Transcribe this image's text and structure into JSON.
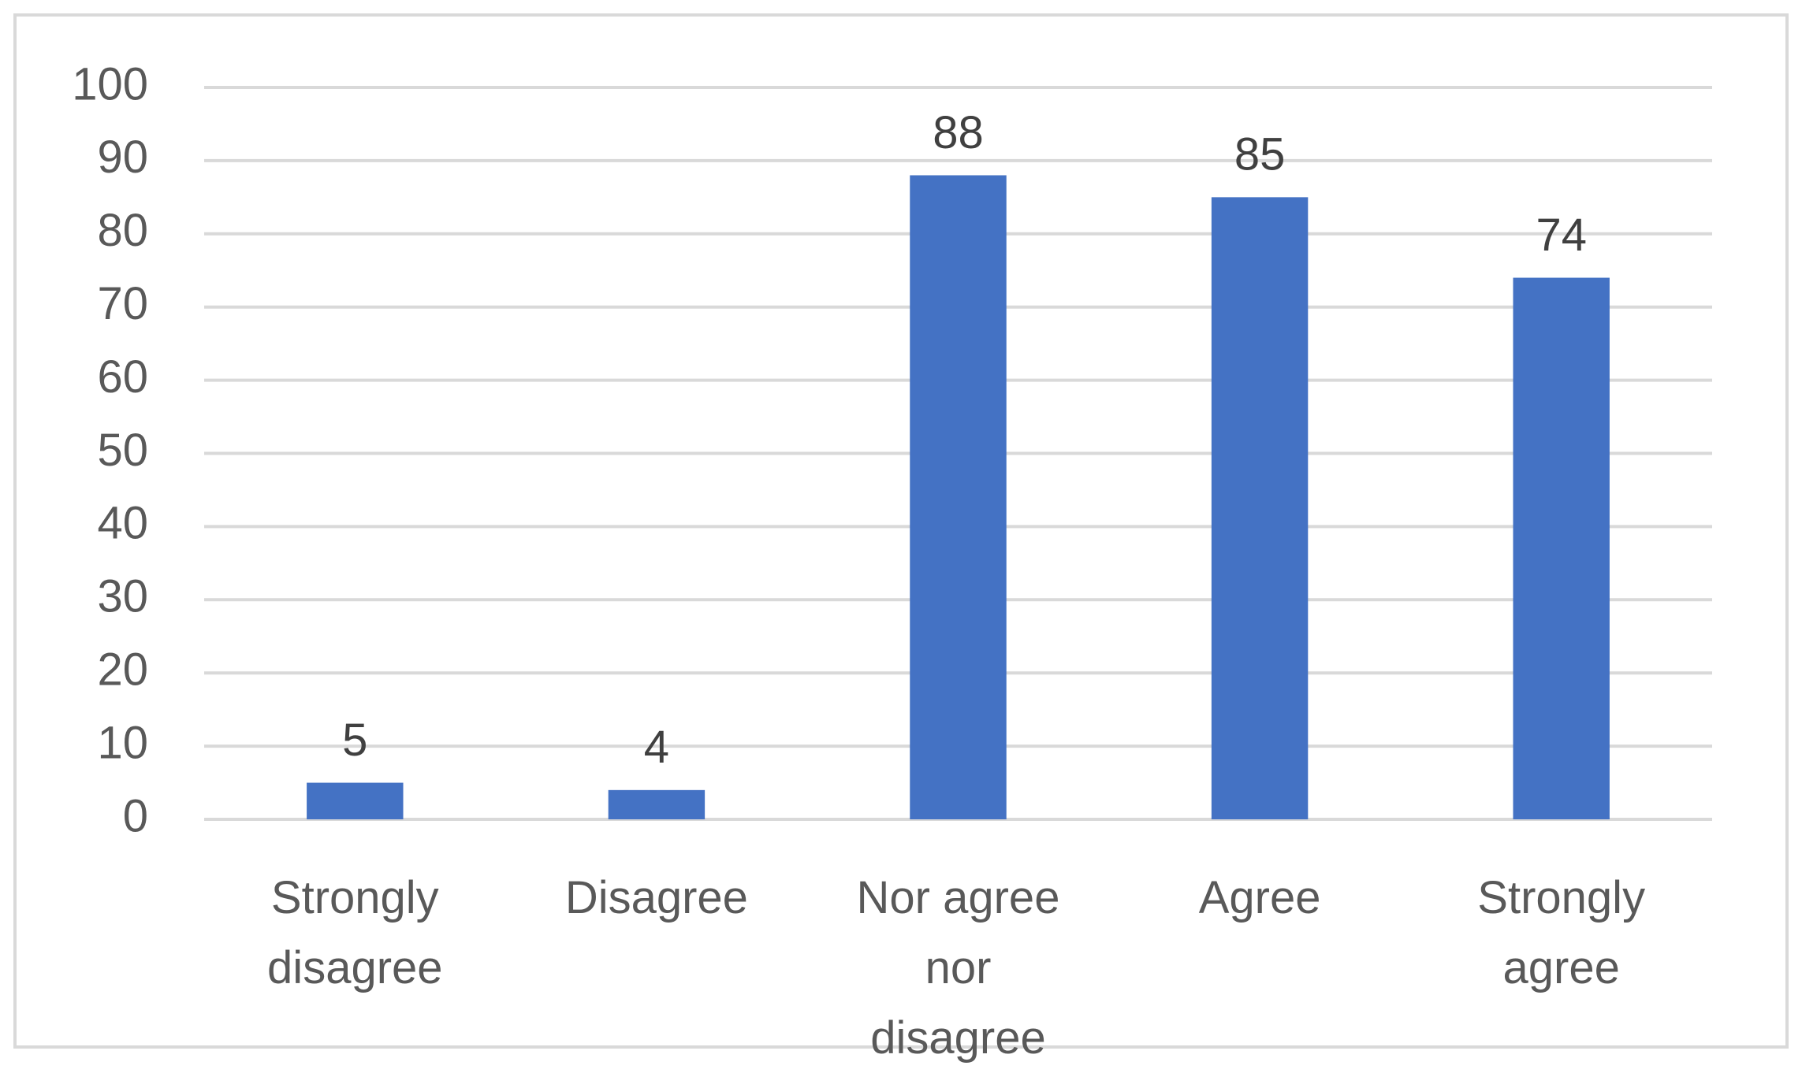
{
  "chart_data": {
    "type": "bar",
    "categories": [
      "Strongly disagree",
      "Disagree",
      "Nor agree nor disagree",
      "Agree",
      "Strongly agree"
    ],
    "values": [
      5,
      4,
      88,
      85,
      74
    ],
    "color": "#4472c4",
    "ylim": [
      0,
      100
    ],
    "yticks": [
      0,
      10,
      20,
      30,
      40,
      50,
      60,
      70,
      80,
      90,
      100
    ],
    "grid": true
  }
}
